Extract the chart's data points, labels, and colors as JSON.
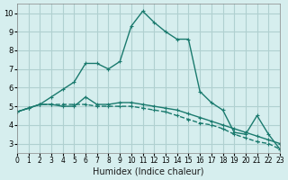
{
  "xlabel": "Humidex (Indice chaleur)",
  "background_color": "#d6eeee",
  "grid_color": "#b0d0d0",
  "line_color": "#1a7a6e",
  "xlim": [
    0,
    23
  ],
  "ylim": [
    2.5,
    10.5
  ],
  "xticks": [
    0,
    1,
    2,
    3,
    4,
    5,
    6,
    7,
    8,
    9,
    10,
    11,
    12,
    13,
    14,
    15,
    16,
    17,
    18,
    19,
    20,
    21,
    22,
    23
  ],
  "yticks": [
    3,
    4,
    5,
    6,
    7,
    8,
    9,
    10
  ],
  "line1_x": [
    0,
    1,
    2,
    3,
    4,
    5,
    6,
    7,
    8,
    9,
    10,
    11,
    12,
    13,
    14,
    15,
    16,
    17,
    18,
    19,
    20,
    21,
    22,
    23
  ],
  "line1_y": [
    4.7,
    4.9,
    5.1,
    5.5,
    5.9,
    6.3,
    7.3,
    7.3,
    7.0,
    7.4,
    9.3,
    10.1,
    9.5,
    9.0,
    8.6,
    8.6,
    5.8,
    5.2,
    4.8,
    3.6,
    3.5,
    4.5,
    3.5,
    2.7
  ],
  "line2_x": [
    0,
    1,
    2,
    3,
    4,
    5,
    6,
    7,
    8,
    9,
    10,
    11,
    12,
    13,
    14,
    15,
    16,
    17,
    18,
    19,
    20,
    21,
    22,
    23
  ],
  "line2_y": [
    4.7,
    4.9,
    5.1,
    5.1,
    5.1,
    5.1,
    5.1,
    5.0,
    5.0,
    5.0,
    5.0,
    4.9,
    4.8,
    4.7,
    4.5,
    4.3,
    4.1,
    4.0,
    3.8,
    3.5,
    3.3,
    3.1,
    3.0,
    2.7
  ],
  "line3_x": [
    0,
    1,
    2,
    3,
    4,
    5,
    6,
    7,
    8,
    9,
    10,
    11,
    12,
    13,
    14,
    15,
    16,
    17,
    18,
    19,
    20,
    21,
    22,
    23
  ],
  "line3_y": [
    4.7,
    4.9,
    5.1,
    5.1,
    5.0,
    5.0,
    5.5,
    5.1,
    5.1,
    5.2,
    5.2,
    5.1,
    5.0,
    4.9,
    4.8,
    4.6,
    4.4,
    4.2,
    4.0,
    3.8,
    3.6,
    3.4,
    3.2,
    3.0
  ]
}
